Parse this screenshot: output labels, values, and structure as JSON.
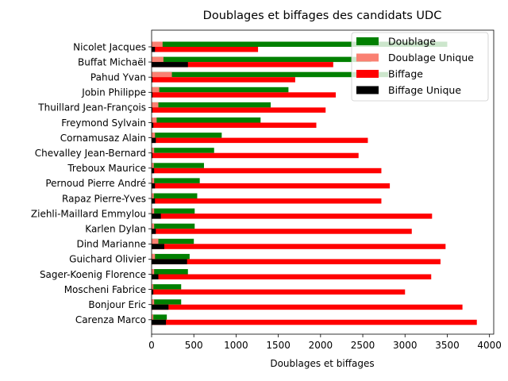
{
  "chart_data": {
    "type": "bar",
    "orientation": "horizontal",
    "title": "Doublages et biffages des candidats UDC",
    "xlabel": "Doublages et biffages",
    "ylabel": "",
    "xlim": [
      0,
      4050
    ],
    "xticks": [
      0,
      500,
      1000,
      1500,
      2000,
      2500,
      3000,
      3500,
      4000
    ],
    "grid": false,
    "legend_position": "top-right",
    "categories": [
      "Nicolet Jacques",
      "Buffat Michaël",
      "Pahud Yvan",
      "Jobin Philippe",
      "Thuillard Jean-François",
      "Freymond Sylvain",
      "Cornamusaz Alain",
      "Chevalley Jean-Bernard",
      "Treboux Maurice",
      "Pernoud Pierre André",
      "Rapaz Pierre-Yves",
      "Ziehli-Maillard Emmylou",
      "Karlen Dylan",
      "Dind Marianne",
      "Guichard Olivier",
      "Sager-Koenig Florence",
      "Moscheni Fabrice",
      "Bonjour Eric",
      "Carenza Marco"
    ],
    "series": [
      {
        "name": "Doublage",
        "color": "#008000",
        "values": [
          3500,
          2600,
          2800,
          1620,
          1410,
          1290,
          830,
          740,
          620,
          570,
          540,
          510,
          510,
          500,
          450,
          430,
          350,
          350,
          180
        ]
      },
      {
        "name": "Doublage Unique",
        "color": "#fa8072",
        "values": [
          130,
          140,
          240,
          90,
          80,
          60,
          40,
          30,
          25,
          30,
          25,
          30,
          30,
          80,
          40,
          30,
          20,
          30,
          20
        ]
      },
      {
        "name": "Biffage",
        "color": "#ff0000",
        "values": [
          1260,
          2150,
          1700,
          2180,
          2060,
          1950,
          2560,
          2450,
          2720,
          2820,
          2720,
          3320,
          3080,
          3480,
          3420,
          3310,
          3000,
          3680,
          3850
        ]
      },
      {
        "name": "Biffage Unique",
        "color": "#000000",
        "values": [
          40,
          430,
          10,
          10,
          10,
          20,
          50,
          10,
          30,
          40,
          40,
          110,
          50,
          150,
          420,
          80,
          20,
          200,
          170
        ]
      }
    ]
  }
}
